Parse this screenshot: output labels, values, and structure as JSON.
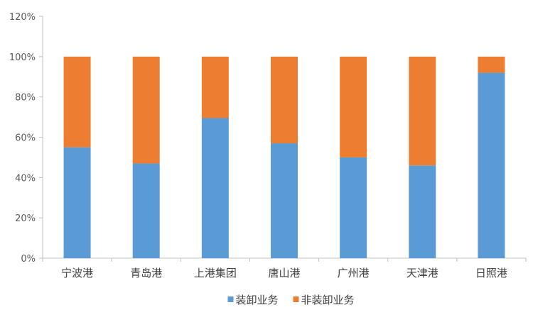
{
  "chart_data": {
    "type": "bar",
    "stacked": true,
    "title": "",
    "xlabel": "",
    "ylabel": "",
    "ylim": [
      0,
      120
    ],
    "y_ticks": [
      "0%",
      "20%",
      "40%",
      "60%",
      "80%",
      "100%",
      "120%"
    ],
    "categories": [
      "宁波港",
      "青岛港",
      "上港集团",
      "唐山港",
      "广州港",
      "天津港",
      "日照港"
    ],
    "series": [
      {
        "name": "装卸业务",
        "color": "#5B9BD5",
        "values": [
          55,
          47,
          69.5,
          57,
          50,
          46,
          92
        ]
      },
      {
        "name": "非装卸业务",
        "color": "#ED7D31",
        "values": [
          45,
          53,
          30.5,
          43,
          50,
          54,
          8
        ]
      }
    ],
    "grid": false,
    "legend_position": "bottom"
  }
}
